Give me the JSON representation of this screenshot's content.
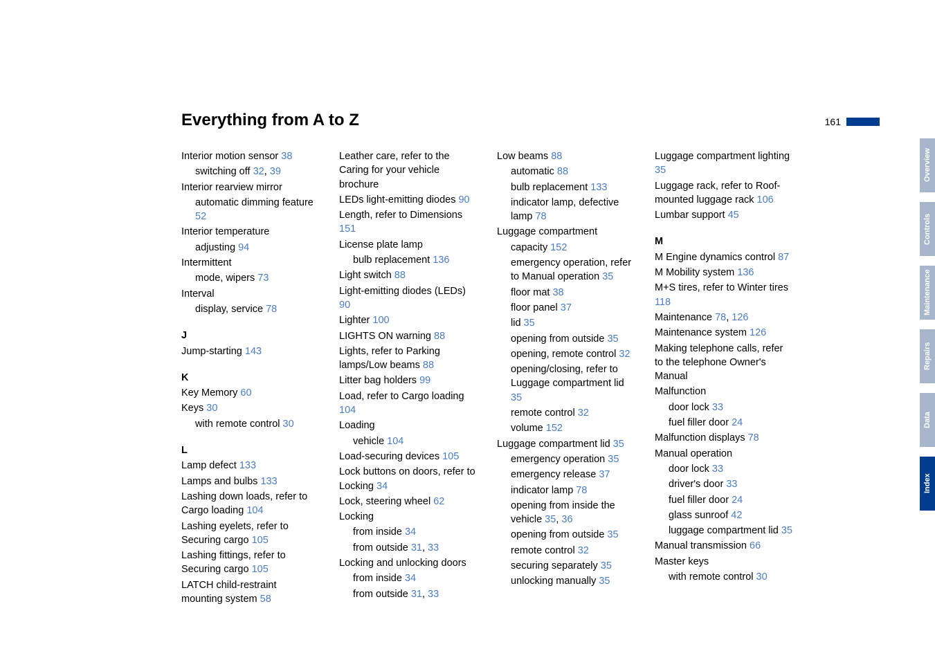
{
  "title": "Everything from A to Z",
  "page_number": "161",
  "colors": {
    "link": "#4a7cc4",
    "tab_inactive_bg": "#a8b6cc",
    "tab_active_bg": "#003d8e",
    "pagemark_bg": "#003d8e"
  },
  "tabs": [
    {
      "label": "Overview",
      "active": false
    },
    {
      "label": "Controls",
      "active": false
    },
    {
      "label": "Maintenance",
      "active": false
    },
    {
      "label": "Repairs",
      "active": false
    },
    {
      "label": "Data",
      "active": false
    },
    {
      "label": "Index",
      "active": true
    }
  ],
  "columns": [
    {
      "entries": [
        {
          "text": "Interior motion sensor ",
          "refs": [
            "38"
          ]
        },
        {
          "text": "switching off ",
          "refs": [
            "32",
            "39"
          ],
          "sub": true
        },
        {
          "text": "Interior rearview mirror"
        },
        {
          "text": "automatic dimming feature ",
          "refs": [
            "52"
          ],
          "sub": true
        },
        {
          "text": "Interior temperature"
        },
        {
          "text": "adjusting ",
          "refs": [
            "94"
          ],
          "sub": true
        },
        {
          "text": "Intermittent"
        },
        {
          "text": "mode, wipers ",
          "refs": [
            "73"
          ],
          "sub": true
        },
        {
          "text": "Interval"
        },
        {
          "text": "display, service ",
          "refs": [
            "78"
          ],
          "sub": true
        },
        {
          "letter": "J"
        },
        {
          "text": "Jump-starting ",
          "refs": [
            "143"
          ]
        },
        {
          "letter": "K"
        },
        {
          "text": "Key Memory ",
          "refs": [
            "60"
          ]
        },
        {
          "text": "Keys ",
          "refs": [
            "30"
          ]
        },
        {
          "text": "with remote control ",
          "refs": [
            "30"
          ],
          "sub": true
        },
        {
          "letter": "L"
        },
        {
          "text": "Lamp defect ",
          "refs": [
            "133"
          ]
        },
        {
          "text": "Lamps and bulbs ",
          "refs": [
            "133"
          ]
        },
        {
          "text": "Lashing down loads, refer to Cargo loading ",
          "refs": [
            "104"
          ]
        },
        {
          "text": "Lashing eyelets, refer to Securing cargo ",
          "refs": [
            "105"
          ]
        },
        {
          "text": "Lashing fittings, refer to Securing cargo ",
          "refs": [
            "105"
          ]
        },
        {
          "text": "LATCH child-restraint mounting system ",
          "refs": [
            "58"
          ]
        }
      ]
    },
    {
      "entries": [
        {
          "text": "Leather care, refer to the Caring for your vehicle brochure"
        },
        {
          "text": "LEDs light-emitting diodes ",
          "refs": [
            "90"
          ]
        },
        {
          "text": "Length, refer to Dimensions ",
          "refs": [
            "151"
          ]
        },
        {
          "text": "License plate lamp"
        },
        {
          "text": "bulb replacement ",
          "refs": [
            "136"
          ],
          "sub": true
        },
        {
          "text": "Light switch ",
          "refs": [
            "88"
          ]
        },
        {
          "text": "Light-emitting diodes (LEDs) ",
          "refs": [
            "90"
          ]
        },
        {
          "text": "Lighter ",
          "refs": [
            "100"
          ]
        },
        {
          "text": "LIGHTS ON warning ",
          "refs": [
            "88"
          ]
        },
        {
          "text": "Lights, refer to Parking lamps/Low beams ",
          "refs": [
            "88"
          ]
        },
        {
          "text": "Litter bag holders ",
          "refs": [
            "99"
          ]
        },
        {
          "text": "Load, refer to Cargo loading ",
          "refs": [
            "104"
          ]
        },
        {
          "text": "Loading"
        },
        {
          "text": "vehicle ",
          "refs": [
            "104"
          ],
          "sub": true
        },
        {
          "text": "Load-securing devices ",
          "refs": [
            "105"
          ]
        },
        {
          "text": "Lock buttons on doors, refer to Locking ",
          "refs": [
            "34"
          ]
        },
        {
          "text": "Lock, steering wheel ",
          "refs": [
            "62"
          ]
        },
        {
          "text": "Locking"
        },
        {
          "text": "from inside ",
          "refs": [
            "34"
          ],
          "sub": true
        },
        {
          "text": "from outside ",
          "refs": [
            "31",
            "33"
          ],
          "sub": true
        },
        {
          "text": "Locking and unlocking doors"
        },
        {
          "text": "from inside ",
          "refs": [
            "34"
          ],
          "sub": true
        },
        {
          "text": "from outside ",
          "refs": [
            "31",
            "33"
          ],
          "sub": true
        }
      ]
    },
    {
      "entries": [
        {
          "text": "Low beams ",
          "refs": [
            "88"
          ]
        },
        {
          "text": "automatic ",
          "refs": [
            "88"
          ],
          "sub": true
        },
        {
          "text": "bulb replacement ",
          "refs": [
            "133"
          ],
          "sub": true
        },
        {
          "text": "indicator lamp, defective lamp ",
          "refs": [
            "78"
          ],
          "sub": true
        },
        {
          "text": "Luggage compartment"
        },
        {
          "text": "capacity ",
          "refs": [
            "152"
          ],
          "sub": true
        },
        {
          "text": "emergency operation, refer to Manual operation ",
          "refs": [
            "35"
          ],
          "sub": true
        },
        {
          "text": "floor mat ",
          "refs": [
            "38"
          ],
          "sub": true
        },
        {
          "text": "floor panel ",
          "refs": [
            "37"
          ],
          "sub": true
        },
        {
          "text": "lid ",
          "refs": [
            "35"
          ],
          "sub": true
        },
        {
          "text": "opening from outside ",
          "refs": [
            "35"
          ],
          "sub": true
        },
        {
          "text": "opening, remote control ",
          "refs": [
            "32"
          ],
          "sub": true
        },
        {
          "text": "opening/closing, refer to Luggage compartment lid ",
          "refs": [
            "35"
          ],
          "sub": true
        },
        {
          "text": "remote control ",
          "refs": [
            "32"
          ],
          "sub": true
        },
        {
          "text": "volume ",
          "refs": [
            "152"
          ],
          "sub": true
        },
        {
          "text": "Luggage compartment lid ",
          "refs": [
            "35"
          ]
        },
        {
          "text": "emergency operation ",
          "refs": [
            "35"
          ],
          "sub": true
        },
        {
          "text": "emergency release ",
          "refs": [
            "37"
          ],
          "sub": true
        },
        {
          "text": "indicator lamp ",
          "refs": [
            "78"
          ],
          "sub": true
        },
        {
          "text": "opening from inside the vehicle ",
          "refs": [
            "35",
            "36"
          ],
          "sub": true
        },
        {
          "text": "opening from outside ",
          "refs": [
            "35"
          ],
          "sub": true
        },
        {
          "text": "remote control ",
          "refs": [
            "32"
          ],
          "sub": true
        },
        {
          "text": "securing separately ",
          "refs": [
            "35"
          ],
          "sub": true
        },
        {
          "text": "unlocking manually ",
          "refs": [
            "35"
          ],
          "sub": true
        }
      ]
    },
    {
      "entries": [
        {
          "text": "Luggage compartment lighting ",
          "refs": [
            "35"
          ]
        },
        {
          "text": "Luggage rack, refer to Roof-mounted luggage rack ",
          "refs": [
            "106"
          ]
        },
        {
          "text": "Lumbar support ",
          "refs": [
            "45"
          ]
        },
        {
          "letter": "M"
        },
        {
          "text": "M Engine dynamics control ",
          "refs": [
            "87"
          ]
        },
        {
          "text": "M Mobility system ",
          "refs": [
            "136"
          ]
        },
        {
          "text": "M+S tires, refer to Winter tires ",
          "refs": [
            "118"
          ]
        },
        {
          "text": "Maintenance ",
          "refs": [
            "78",
            "126"
          ]
        },
        {
          "text": "Maintenance system ",
          "refs": [
            "126"
          ]
        },
        {
          "text": "Making telephone calls, refer to the telephone Owner's Manual"
        },
        {
          "text": "Malfunction"
        },
        {
          "text": "door lock ",
          "refs": [
            "33"
          ],
          "sub": true
        },
        {
          "text": "fuel filler door ",
          "refs": [
            "24"
          ],
          "sub": true
        },
        {
          "text": "Malfunction displays ",
          "refs": [
            "78"
          ]
        },
        {
          "text": "Manual operation"
        },
        {
          "text": "door lock ",
          "refs": [
            "33"
          ],
          "sub": true
        },
        {
          "text": "driver's door ",
          "refs": [
            "33"
          ],
          "sub": true
        },
        {
          "text": "fuel filler door ",
          "refs": [
            "24"
          ],
          "sub": true
        },
        {
          "text": "glass sunroof ",
          "refs": [
            "42"
          ],
          "sub": true
        },
        {
          "text": "luggage compartment lid ",
          "refs": [
            "35"
          ],
          "sub": true
        },
        {
          "text": "Manual transmission ",
          "refs": [
            "66"
          ]
        },
        {
          "text": "Master keys"
        },
        {
          "text": "with remote control ",
          "refs": [
            "30"
          ],
          "sub": true
        }
      ]
    }
  ]
}
